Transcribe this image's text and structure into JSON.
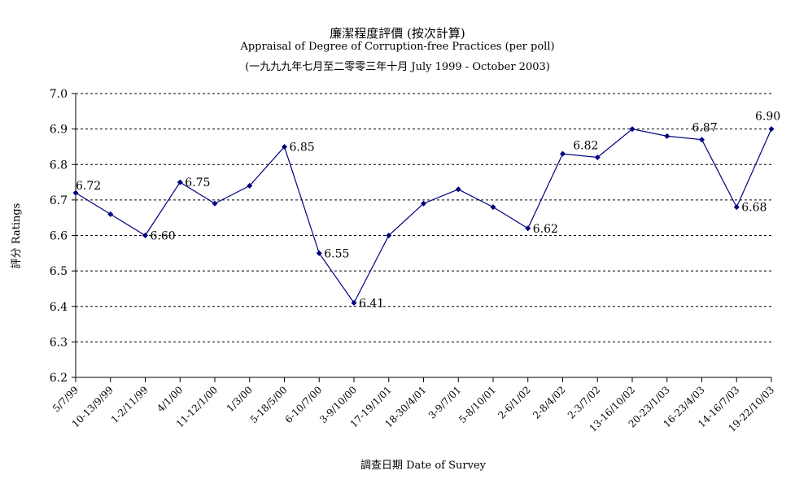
{
  "chart_data": {
    "type": "line",
    "title": "廉潔程度評價 (按次計算)",
    "subtitle": "Appraisal of Degree of Corruption-free Practices (per poll)",
    "subtitle2": "(一九九九年七月至二零零三年十月 July 1999 - October 2003)",
    "xlabel": "調查日期 Date of Survey",
    "ylabel": "評分 Ratings",
    "ylim": [
      6.2,
      7.0
    ],
    "yticks": [
      "6.2",
      "6.3",
      "6.4",
      "6.5",
      "6.6",
      "6.7",
      "6.8",
      "6.9",
      "7.0"
    ],
    "grid": true,
    "categories": [
      "5/7/99",
      "10-13/9/99",
      "1-2/11/99",
      "4/1/00",
      "11-12/1/00",
      "1/3/00",
      "5-18/5/00",
      "6-10/7/00",
      "3-9/10/00",
      "17-19/1/01",
      "18-30/4/01",
      "3-9/7/01",
      "5-8/10/01",
      "2-6/1/02",
      "2-8/4/02",
      "2-3/7/02",
      "13-16/10/02",
      "20-23/1/03",
      "16-23/4/03",
      "14-16/7/03",
      "19-22/10/03"
    ],
    "values": [
      6.72,
      6.66,
      6.6,
      6.75,
      6.69,
      6.74,
      6.85,
      6.55,
      6.41,
      6.6,
      6.69,
      6.73,
      6.68,
      6.62,
      6.83,
      6.82,
      6.9,
      6.88,
      6.87,
      6.68,
      6.9
    ],
    "data_labels": [
      "6.72",
      null,
      "6.60",
      "6.75",
      null,
      null,
      "6.85",
      "6.55",
      "6.41",
      null,
      null,
      null,
      null,
      "6.62",
      null,
      "6.82",
      null,
      null,
      "6.87",
      "6.68",
      "6.90"
    ],
    "line_color": "#000080"
  }
}
